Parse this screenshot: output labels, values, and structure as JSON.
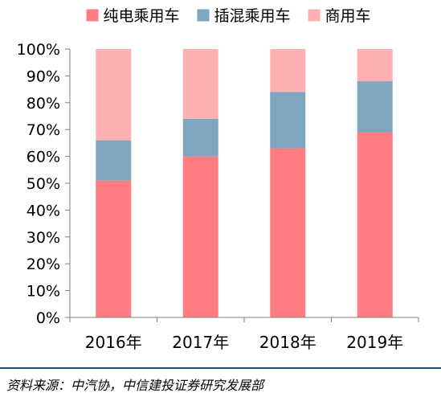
{
  "chart_data": {
    "type": "bar",
    "stacked": true,
    "categories": [
      "2016年",
      "2017年",
      "2018年",
      "2019年"
    ],
    "series": [
      {
        "name": "纯电乘用车",
        "color": "#ff7c80",
        "values": [
          51,
          60,
          63,
          69
        ]
      },
      {
        "name": "插混乘用车",
        "color": "#7fa6c1",
        "values": [
          15,
          14,
          21,
          19
        ]
      },
      {
        "name": "商用车",
        "color": "#ffb0b3",
        "values": [
          34,
          26,
          16,
          12
        ]
      }
    ],
    "ylim": [
      0,
      100
    ],
    "yticks": [
      "0%",
      "10%",
      "20%",
      "30%",
      "40%",
      "50%",
      "60%",
      "70%",
      "80%",
      "90%",
      "100%"
    ],
    "legend": "top",
    "grid": false
  },
  "source_note": "资料来源：中汽协，中信建投证券研究发展部"
}
